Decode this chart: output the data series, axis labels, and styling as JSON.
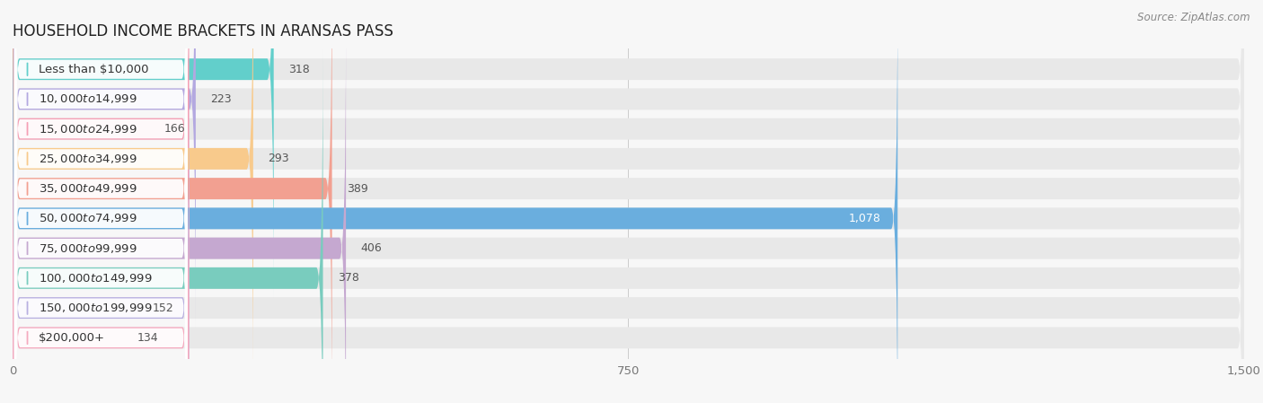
{
  "title": "HOUSEHOLD INCOME BRACKETS IN ARANSAS PASS",
  "source": "Source: ZipAtlas.com",
  "categories": [
    "Less than $10,000",
    "$10,000 to $14,999",
    "$15,000 to $24,999",
    "$25,000 to $34,999",
    "$35,000 to $49,999",
    "$50,000 to $74,999",
    "$75,000 to $99,999",
    "$100,000 to $149,999",
    "$150,000 to $199,999",
    "$200,000+"
  ],
  "values": [
    318,
    223,
    166,
    293,
    389,
    1078,
    406,
    378,
    152,
    134
  ],
  "bar_colors": [
    "#62CFCB",
    "#B3A8E0",
    "#F5A0B5",
    "#F8CA8C",
    "#F2A091",
    "#6AAEDE",
    "#C5A8D0",
    "#79CCBE",
    "#B8B0E0",
    "#F5AABF"
  ],
  "bg_color": "#f7f7f7",
  "bar_bg_color": "#e8e8e8",
  "label_bg_color": "#ffffff",
  "xlim": [
    0,
    1500
  ],
  "xticks": [
    0,
    750,
    1500
  ],
  "title_fontsize": 12,
  "label_fontsize": 9.5,
  "value_fontsize": 9,
  "source_fontsize": 8.5
}
